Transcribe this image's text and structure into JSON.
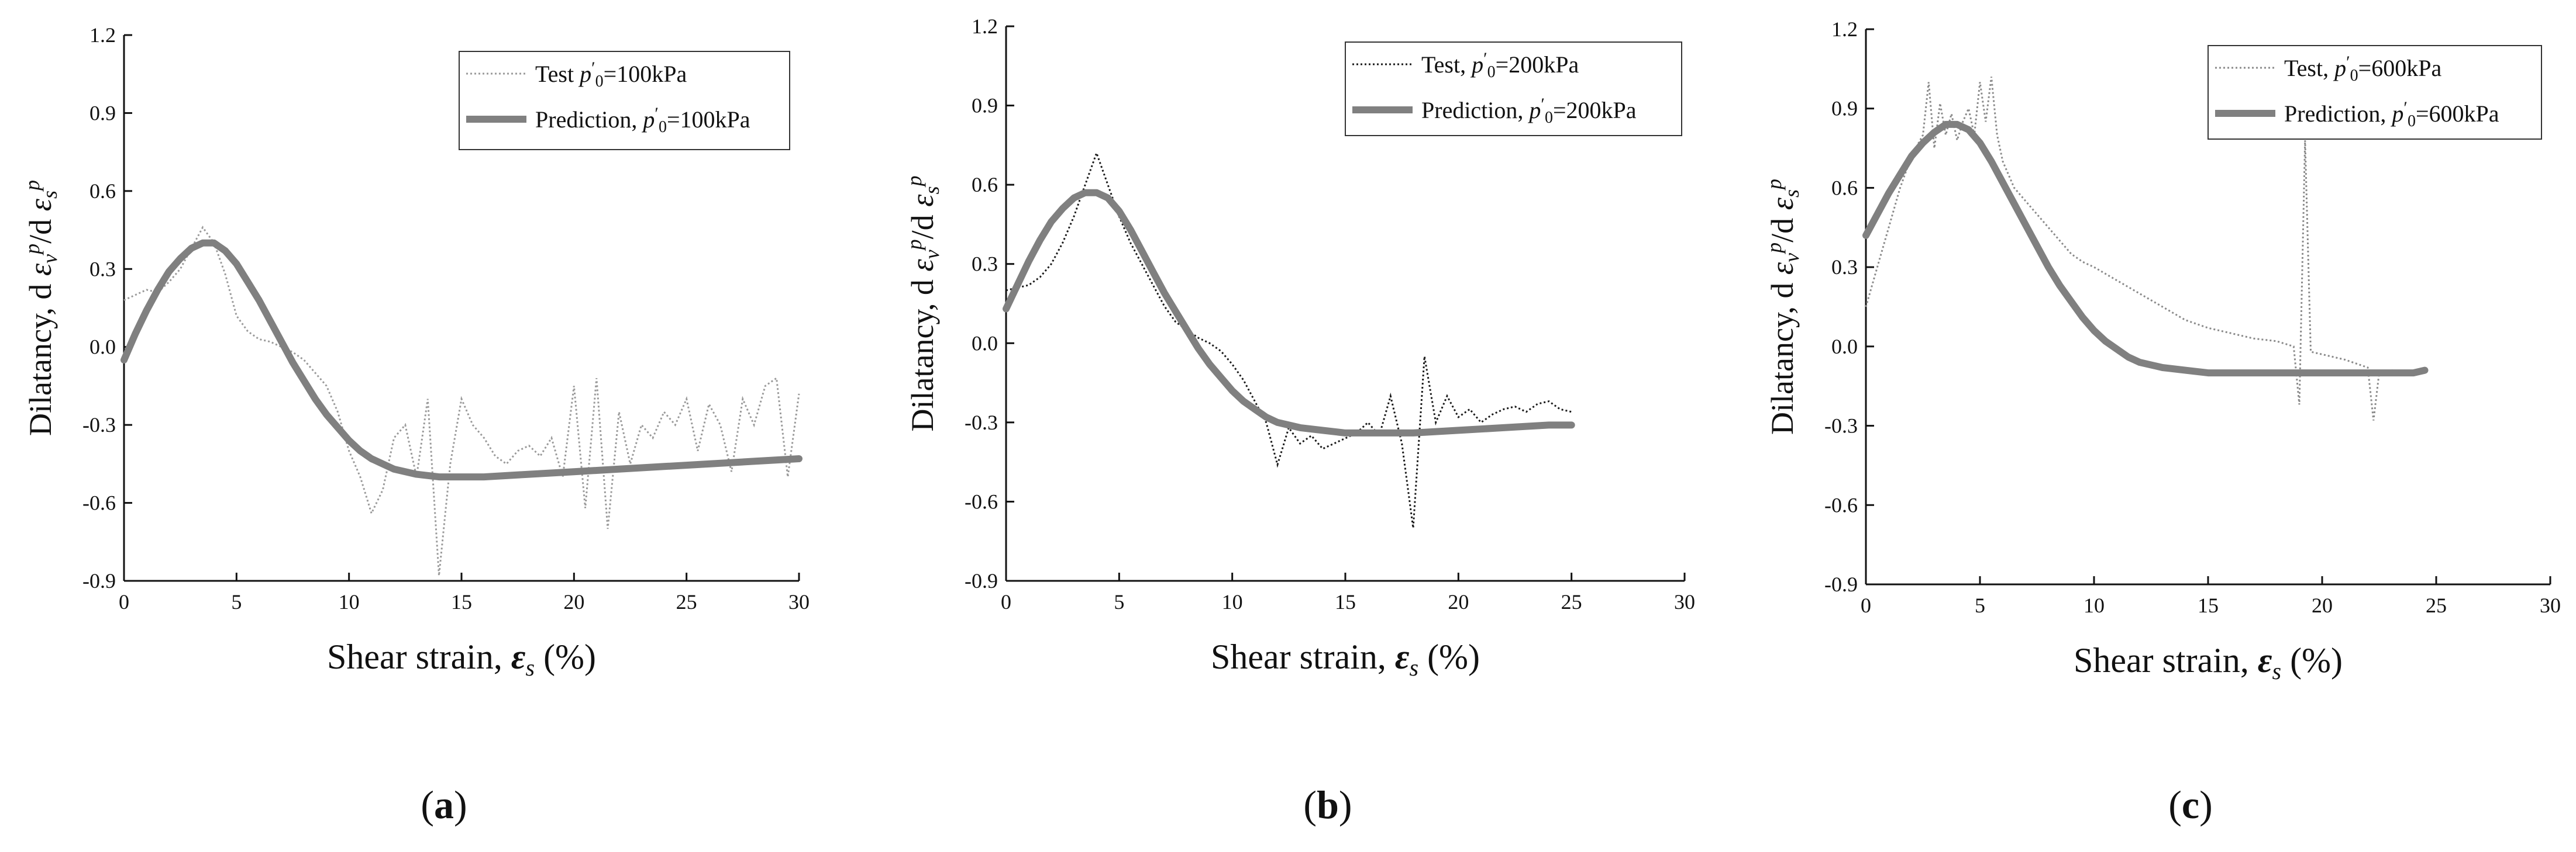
{
  "chart_data": [
    {
      "panel": "(a)",
      "type": "line",
      "xlabel": "Shear strain,",
      "ylabel": "Dilatancy, d",
      "x_ticks": [
        0,
        5,
        10,
        15,
        20,
        25,
        30
      ],
      "y_ticks": [
        -0.9,
        -0.6,
        -0.3,
        0.0,
        0.3,
        0.6,
        0.9,
        1.2
      ],
      "xlim": [
        0,
        30
      ],
      "ylim": [
        -0.9,
        1.2
      ],
      "grid": false,
      "legend_position": "top-right",
      "series": [
        {
          "name": "Test, p'0=100kPa",
          "label_text": "Test",
          "label_value": "=100kPa",
          "style": "dotted",
          "color": "#9a9a9a",
          "x": [
            0,
            0.5,
            1,
            1.5,
            2,
            2.5,
            3,
            3.5,
            4,
            4.5,
            5,
            5.5,
            6,
            6.5,
            7,
            7.5,
            8,
            8.5,
            9,
            9.5,
            10,
            10.5,
            11,
            11.5,
            12,
            12.5,
            13,
            13.5,
            14,
            14.5,
            15,
            15.5,
            16,
            16.5,
            17,
            17.5,
            18,
            18.5,
            19,
            19.5,
            20,
            20.5,
            21,
            21.5,
            22,
            22.5,
            23,
            23.5,
            24,
            24.5,
            25,
            25.5,
            26,
            26.5,
            27,
            27.5,
            28,
            28.5,
            29,
            29.5,
            30
          ],
          "values": [
            0.18,
            0.2,
            0.22,
            0.21,
            0.25,
            0.3,
            0.38,
            0.46,
            0.4,
            0.28,
            0.12,
            0.06,
            0.03,
            0.02,
            0.0,
            -0.02,
            -0.05,
            -0.1,
            -0.15,
            -0.25,
            -0.4,
            -0.5,
            -0.64,
            -0.55,
            -0.35,
            -0.3,
            -0.5,
            -0.2,
            -0.88,
            -0.45,
            -0.2,
            -0.3,
            -0.35,
            -0.42,
            -0.45,
            -0.4,
            -0.38,
            -0.42,
            -0.35,
            -0.5,
            -0.15,
            -0.62,
            -0.12,
            -0.7,
            -0.25,
            -0.45,
            -0.3,
            -0.35,
            -0.25,
            -0.3,
            -0.2,
            -0.4,
            -0.22,
            -0.3,
            -0.48,
            -0.2,
            -0.3,
            -0.15,
            -0.12,
            -0.5,
            -0.18
          ]
        },
        {
          "name": "Prediction, p'0=100kPa",
          "label_text": "Prediction,",
          "label_value": "=100kPa",
          "style": "solid",
          "color": "#808080",
          "x": [
            0,
            0.5,
            1,
            1.5,
            2,
            2.5,
            3,
            3.5,
            4,
            4.5,
            5,
            5.5,
            6,
            6.5,
            7,
            7.5,
            8,
            8.5,
            9,
            9.5,
            10,
            10.5,
            11,
            11.5,
            12,
            13,
            14,
            15,
            16,
            18,
            20,
            22,
            24,
            26,
            28,
            30
          ],
          "values": [
            -0.05,
            0.05,
            0.14,
            0.22,
            0.29,
            0.34,
            0.38,
            0.4,
            0.4,
            0.37,
            0.32,
            0.25,
            0.18,
            0.1,
            0.02,
            -0.06,
            -0.13,
            -0.2,
            -0.26,
            -0.31,
            -0.36,
            -0.4,
            -0.43,
            -0.45,
            -0.47,
            -0.49,
            -0.5,
            -0.5,
            -0.5,
            -0.49,
            -0.48,
            -0.47,
            -0.46,
            -0.45,
            -0.44,
            -0.43
          ]
        }
      ]
    },
    {
      "panel": "(b)",
      "type": "line",
      "xlabel": "Shear strain,",
      "ylabel": "Dilatancy, d",
      "x_ticks": [
        0,
        5,
        10,
        15,
        20,
        25,
        30
      ],
      "y_ticks": [
        -0.9,
        -0.6,
        -0.3,
        0.0,
        0.3,
        0.6,
        0.9,
        1.2
      ],
      "xlim": [
        0,
        30
      ],
      "ylim": [
        -0.9,
        1.2
      ],
      "grid": false,
      "legend_position": "top-right",
      "series": [
        {
          "name": "Test, p'0=200kPa",
          "label_text": "Test,",
          "label_value": "=200kPa",
          "style": "dotted",
          "color": "#1a1a1a",
          "x": [
            0,
            0.5,
            1,
            1.5,
            2,
            2.5,
            3,
            3.5,
            4,
            4.5,
            5,
            5.5,
            6,
            6.5,
            7,
            7.5,
            8,
            8.5,
            9,
            9.5,
            10,
            10.5,
            11,
            11.5,
            12,
            12.5,
            13,
            13.5,
            14,
            14.5,
            15,
            15.5,
            16,
            16.5,
            17,
            17.5,
            18,
            18.5,
            19,
            19.5,
            20,
            20.5,
            21,
            21.5,
            22,
            22.5,
            23,
            23.5,
            24,
            24.5,
            25
          ],
          "values": [
            0.2,
            0.21,
            0.22,
            0.25,
            0.3,
            0.38,
            0.48,
            0.6,
            0.72,
            0.6,
            0.48,
            0.38,
            0.3,
            0.22,
            0.14,
            0.08,
            0.05,
            0.02,
            0.0,
            -0.03,
            -0.08,
            -0.14,
            -0.22,
            -0.3,
            -0.46,
            -0.32,
            -0.38,
            -0.35,
            -0.4,
            -0.38,
            -0.36,
            -0.34,
            -0.3,
            -0.35,
            -0.2,
            -0.38,
            -0.7,
            -0.05,
            -0.3,
            -0.2,
            -0.28,
            -0.25,
            -0.3,
            -0.27,
            -0.25,
            -0.24,
            -0.26,
            -0.23,
            -0.22,
            -0.25,
            -0.26
          ]
        },
        {
          "name": "Prediction, p'0=200kPa",
          "label_text": "Prediction,",
          "label_value": "=200kPa",
          "style": "solid",
          "color": "#808080",
          "x": [
            0,
            0.5,
            1,
            1.5,
            2,
            2.5,
            3,
            3.5,
            4,
            4.5,
            5,
            5.5,
            6,
            6.5,
            7,
            7.5,
            8,
            8.5,
            9,
            9.5,
            10,
            10.5,
            11,
            11.5,
            12,
            13,
            14,
            15,
            16,
            18,
            20,
            22,
            24,
            25
          ],
          "values": [
            0.13,
            0.22,
            0.31,
            0.39,
            0.46,
            0.51,
            0.55,
            0.57,
            0.57,
            0.55,
            0.5,
            0.43,
            0.35,
            0.27,
            0.19,
            0.12,
            0.05,
            -0.02,
            -0.08,
            -0.13,
            -0.18,
            -0.22,
            -0.25,
            -0.28,
            -0.3,
            -0.32,
            -0.33,
            -0.34,
            -0.34,
            -0.34,
            -0.33,
            -0.32,
            -0.31,
            -0.31
          ]
        }
      ]
    },
    {
      "panel": "(c)",
      "type": "line",
      "xlabel": "Shear strain,",
      "ylabel": "Dilatancy, d",
      "x_ticks": [
        0,
        5,
        10,
        15,
        20,
        25,
        30
      ],
      "y_ticks": [
        -0.9,
        -0.6,
        -0.3,
        0.0,
        0.3,
        0.6,
        0.9,
        1.2
      ],
      "xlim": [
        0,
        30
      ],
      "ylim": [
        -0.9,
        1.2
      ],
      "grid": false,
      "legend_position": "top-right",
      "series": [
        {
          "name": "Test, p'0=600kPa",
          "label_text": "Test,",
          "label_value": "=600kPa",
          "style": "dotted",
          "color": "#8a8a8a",
          "x": [
            0,
            0.5,
            1,
            1.5,
            2,
            2.5,
            2.75,
            3,
            3.25,
            3.5,
            3.75,
            4,
            4.25,
            4.5,
            4.75,
            5,
            5.25,
            5.5,
            5.75,
            6,
            6.5,
            7,
            7.5,
            8,
            8.5,
            9,
            9.5,
            10,
            11,
            12,
            13,
            14,
            15,
            16,
            17,
            18,
            18.75,
            19,
            19.25,
            19.5,
            20,
            21,
            22,
            22.25,
            22.5,
            23,
            24,
            24.5
          ],
          "values": [
            0.15,
            0.3,
            0.45,
            0.6,
            0.72,
            0.8,
            1.0,
            0.75,
            0.92,
            0.8,
            0.88,
            0.78,
            0.85,
            0.9,
            0.8,
            1.0,
            0.85,
            1.02,
            0.8,
            0.7,
            0.6,
            0.55,
            0.5,
            0.45,
            0.4,
            0.35,
            0.32,
            0.3,
            0.25,
            0.2,
            0.15,
            0.1,
            0.07,
            0.05,
            0.03,
            0.02,
            0.0,
            -0.22,
            0.78,
            -0.02,
            -0.03,
            -0.05,
            -0.08,
            -0.28,
            -0.1,
            -0.09,
            -0.1,
            -0.1
          ]
        },
        {
          "name": "Prediction, p'0=600kPa",
          "label_text": "Prediction,",
          "label_value": "=600kPa",
          "style": "solid",
          "color": "#808080",
          "x": [
            0,
            0.5,
            1,
            1.5,
            2,
            2.5,
            3,
            3.5,
            4,
            4.5,
            5,
            5.5,
            6,
            6.5,
            7,
            7.5,
            8,
            8.5,
            9,
            9.5,
            10,
            10.5,
            11,
            11.5,
            12,
            13,
            14,
            15,
            16,
            18,
            20,
            22,
            24,
            24.5
          ],
          "values": [
            0.42,
            0.5,
            0.58,
            0.65,
            0.72,
            0.77,
            0.81,
            0.84,
            0.84,
            0.82,
            0.77,
            0.7,
            0.62,
            0.54,
            0.46,
            0.38,
            0.3,
            0.23,
            0.17,
            0.11,
            0.06,
            0.02,
            -0.01,
            -0.04,
            -0.06,
            -0.08,
            -0.09,
            -0.1,
            -0.1,
            -0.1,
            -0.1,
            -0.1,
            -0.1,
            -0.09
          ]
        }
      ]
    }
  ],
  "captions": [
    "(a)",
    "(b)",
    "(c)"
  ],
  "symbols": {
    "epsilon_s": "ε",
    "sub_s": "s",
    "percent": "(%)",
    "legend_p": "p",
    "legend_prime": "′",
    "legend_sub0": "0",
    "ylabel_epsilon": "ε",
    "ylabel_sub_v": "v",
    "ylabel_sup_p": "p",
    "ylabel_slash_d": "/d",
    "ylabel_sub_s": "s"
  },
  "colors": {
    "axis": "#111111",
    "prediction": "#808080"
  }
}
